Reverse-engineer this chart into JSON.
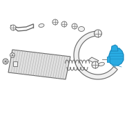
{
  "bg_color": "#ffffff",
  "line_color": "#aaaaaa",
  "dark_line": "#666666",
  "highlight_color": "#29abe2",
  "highlight_edge": "#1a8abf",
  "light_fill": "#f0f0f0",
  "intercooler_fill": "#e0e0e0",
  "fig_width": 2.0,
  "fig_height": 2.0,
  "dpi": 100
}
